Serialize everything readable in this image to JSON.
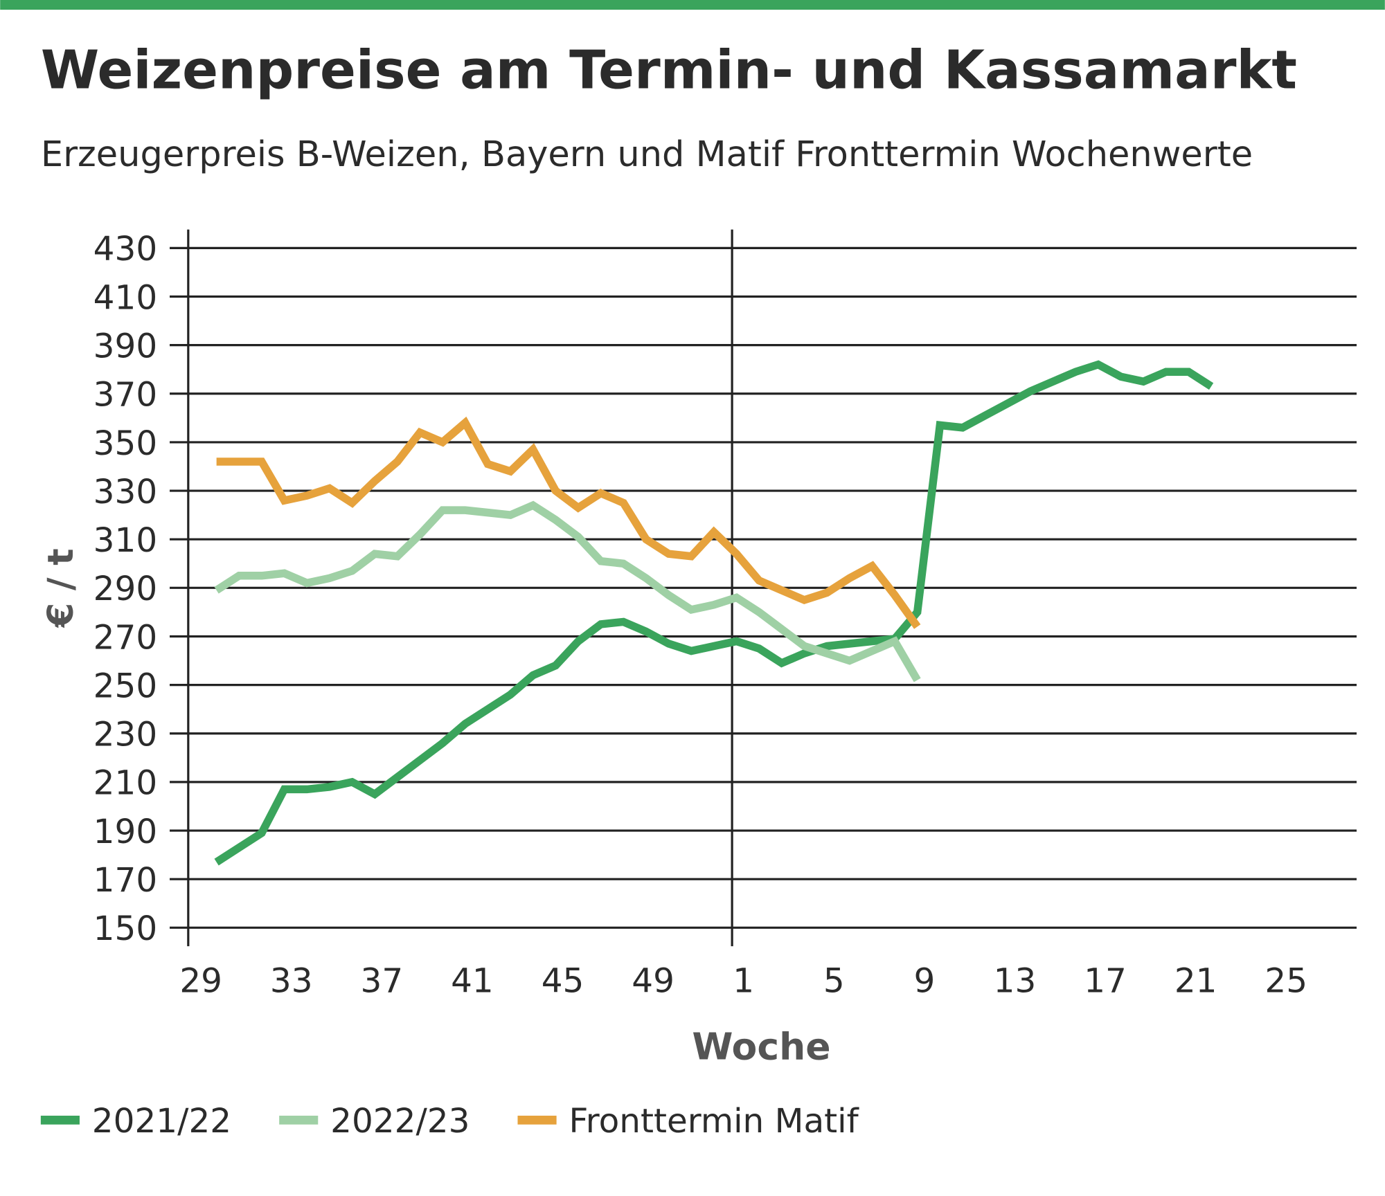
{
  "chart_data": {
    "type": "line",
    "title": "Weizenpreise am Termin- und Kassamarkt",
    "subtitle": "Erzeugerpreis B-Weizen, Bayern und Matif Fronttermin Wochenwerte",
    "y_label": "€ / t",
    "x_label": "Woche",
    "categories": [
      "29",
      null,
      null,
      null,
      "33",
      null,
      null,
      null,
      "37",
      null,
      null,
      null,
      "41",
      null,
      null,
      null,
      "45",
      null,
      null,
      null,
      "49",
      null,
      null,
      null,
      "1",
      null,
      null,
      null,
      "5",
      null,
      null,
      null,
      "9",
      null,
      null,
      null,
      "13",
      null,
      null,
      null,
      "17",
      null,
      null,
      null,
      "21",
      null,
      null,
      null,
      "25",
      null,
      null,
      null
    ],
    "ylim": [
      150,
      430
    ],
    "yticks": [
      150,
      170,
      190,
      210,
      230,
      250,
      270,
      290,
      310,
      330,
      350,
      370,
      390,
      410,
      430
    ],
    "grid": true,
    "series": [
      {
        "name": "2021/22",
        "color": "#3aa45c",
        "values": [
          null,
          177,
          183,
          189,
          207,
          207,
          208,
          210,
          205,
          212,
          219,
          226,
          234,
          240,
          246,
          254,
          258,
          268,
          275,
          276,
          272,
          267,
          264,
          266,
          268,
          265,
          259,
          263,
          266,
          267,
          268,
          269,
          280,
          357,
          356,
          361,
          366,
          371,
          375,
          379,
          382,
          377,
          375,
          379,
          379,
          373,
          null,
          null,
          null,
          null,
          null,
          null
        ]
      },
      {
        "name": "2022/23",
        "color": "#9fd0a5",
        "values": [
          null,
          289,
          295,
          295,
          296,
          292,
          294,
          297,
          304,
          303,
          312,
          322,
          322,
          321,
          320,
          324,
          318,
          311,
          301,
          300,
          294,
          287,
          281,
          283,
          286,
          280,
          273,
          266,
          263,
          260,
          264,
          268,
          252,
          null,
          null,
          null,
          null,
          null,
          null,
          null,
          null,
          null,
          null,
          null,
          null,
          null,
          null,
          null,
          null,
          null,
          null,
          null
        ]
      },
      {
        "name": "Fronttermin Matif",
        "color": "#e6a23c",
        "values": [
          null,
          342,
          342,
          342,
          326,
          328,
          331,
          325,
          334,
          342,
          354,
          350,
          358,
          341,
          338,
          347,
          330,
          323,
          329,
          325,
          310,
          304,
          303,
          313,
          304,
          293,
          289,
          285,
          288,
          294,
          299,
          287,
          274,
          null,
          null,
          null,
          null,
          null,
          null,
          null,
          null,
          null,
          null,
          null,
          null,
          null,
          null,
          null,
          null,
          null,
          null,
          null
        ]
      }
    ]
  }
}
